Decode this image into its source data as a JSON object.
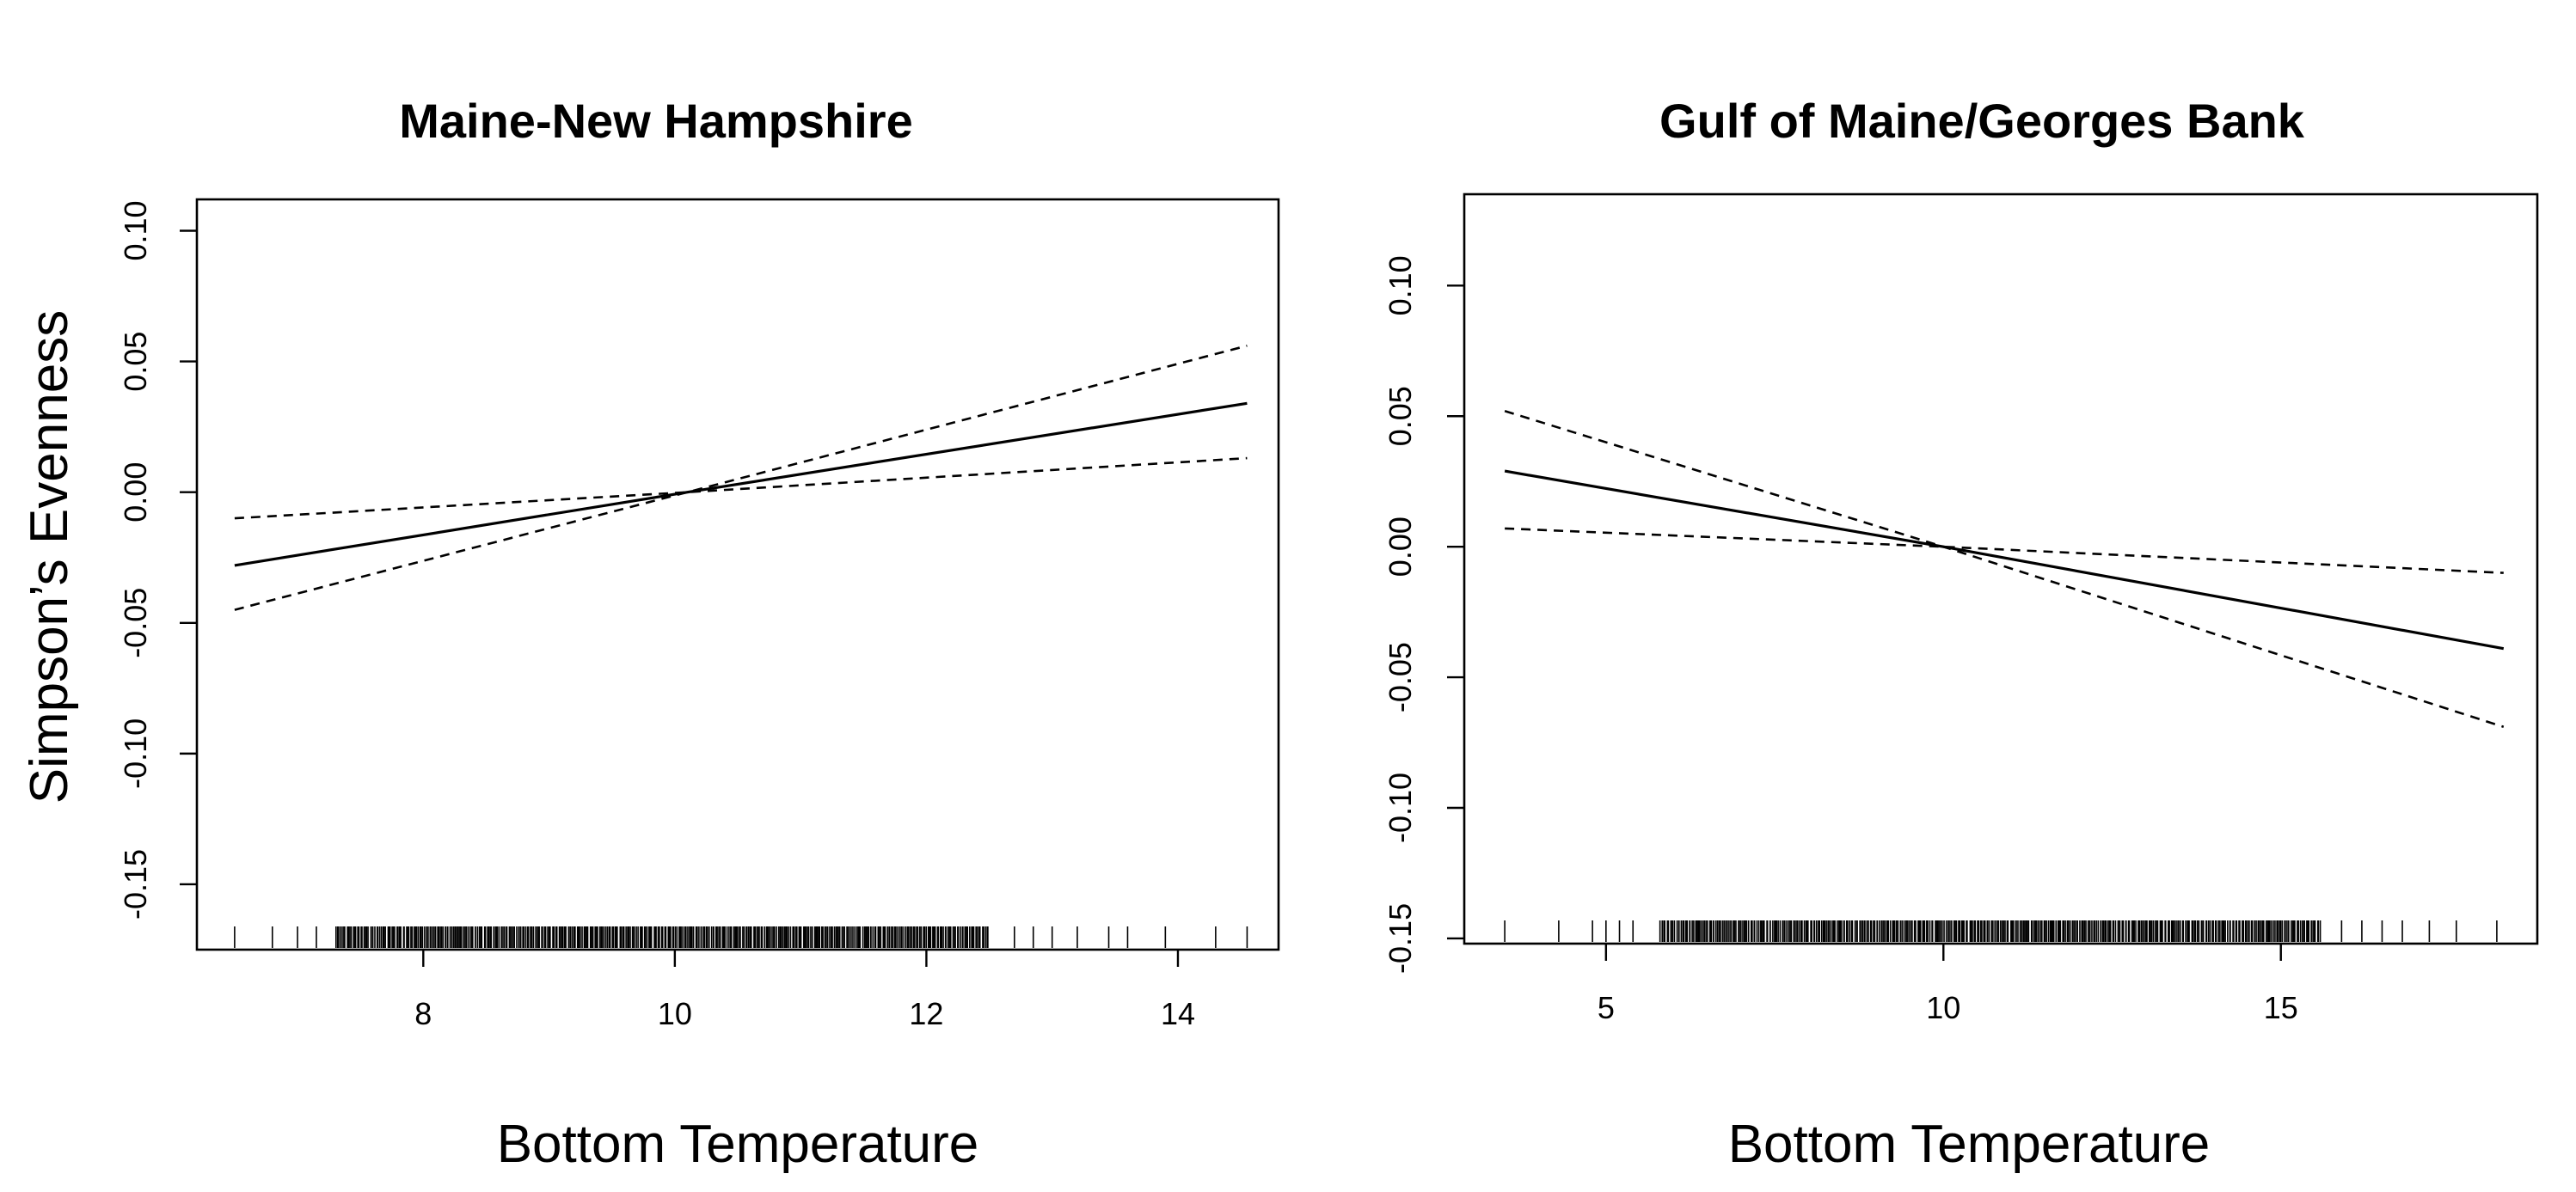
{
  "figure": {
    "ylabel": "Simpson’s Evenness",
    "xlabel": "Bottom Temperature"
  },
  "chart_data": [
    {
      "type": "line",
      "title": "Maine-New Hampshire",
      "xlabel": "Bottom Temperature",
      "ylabel": "Simpson’s Evenness",
      "xlim": [
        6.2,
        14.8
      ],
      "ylim": [
        -0.175,
        0.112
      ],
      "xticks": [
        8,
        10,
        12,
        14
      ],
      "xtick_labels": [
        "8",
        "10",
        "12",
        "14"
      ],
      "yticks": [
        -0.15,
        -0.1,
        -0.05,
        0.0,
        0.05,
        0.1
      ],
      "ytick_labels": [
        "-0.15",
        "-0.10",
        "-0.05",
        "0.00",
        "0.05",
        "0.10"
      ],
      "grid": false,
      "legend": "none",
      "series": [
        {
          "style": "solid",
          "x": [
            6.5,
            10.1,
            14.55
          ],
          "y": [
            -0.028,
            0.0,
            0.034
          ]
        },
        {
          "style": "dashed",
          "x": [
            6.5,
            10.1,
            14.55
          ],
          "y": [
            -0.045,
            0.0,
            0.056
          ]
        },
        {
          "style": "dashed",
          "x": [
            6.5,
            10.1,
            14.55
          ],
          "y": [
            -0.01,
            0.0,
            0.013
          ]
        }
      ],
      "rug": {
        "x_dense_range": [
          7.3,
          12.5
        ],
        "x_sparse": [
          6.5,
          6.8,
          7.0,
          7.15,
          12.7,
          12.85,
          13.0,
          13.2,
          13.45,
          13.6,
          13.9,
          14.3,
          14.55
        ]
      }
    },
    {
      "type": "line",
      "title": "Gulf of Maine/Georges Bank",
      "xlabel": "Bottom Temperature",
      "ylabel": "",
      "xlim": [
        2.9,
        18.8
      ],
      "ylim": [
        -0.152,
        0.135
      ],
      "xticks": [
        5,
        10,
        15
      ],
      "xtick_labels": [
        "5",
        "10",
        "15"
      ],
      "yticks": [
        -0.15,
        -0.1,
        -0.05,
        0.0,
        0.05,
        0.1
      ],
      "ytick_labels": [
        "-0.15",
        "-0.10",
        "-0.05",
        "0.00",
        "0.05",
        "0.10"
      ],
      "grid": false,
      "legend": "none",
      "series": [
        {
          "style": "solid",
          "x": [
            3.5,
            10.0,
            18.3
          ],
          "y": [
            0.029,
            0.0,
            -0.039
          ]
        },
        {
          "style": "dashed",
          "x": [
            3.5,
            10.0,
            18.3
          ],
          "y": [
            0.052,
            0.0,
            -0.069
          ]
        },
        {
          "style": "dashed",
          "x": [
            3.5,
            10.0,
            18.3
          ],
          "y": [
            0.007,
            0.0,
            -0.01
          ]
        }
      ],
      "rug": {
        "x_dense_range": [
          5.8,
          15.6
        ],
        "x_sparse": [
          3.5,
          4.3,
          4.8,
          5.0,
          5.2,
          5.4,
          15.9,
          16.2,
          16.5,
          16.8,
          17.2,
          17.6,
          18.2
        ]
      }
    }
  ]
}
